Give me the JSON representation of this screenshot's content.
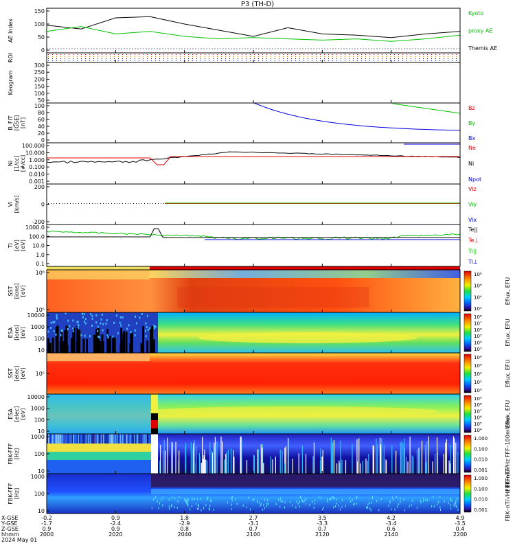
{
  "title": "P3 (TH-D)",
  "panels": [
    {
      "id": "ae",
      "ylabel": "AE Index",
      "yticks": [
        "150",
        "100",
        "50",
        "0"
      ],
      "legend": [
        {
          "text": "Kyoto",
          "color": "#00c000"
        },
        {
          "text": "proxy AE",
          "color": "#00c000"
        },
        {
          "text": "Themis AE",
          "color": "#000000"
        }
      ]
    },
    {
      "id": "roi",
      "ylabel": "ROI",
      "yticks": [],
      "legend": []
    },
    {
      "id": "keogram",
      "ylabel": "Keogram",
      "yticks": [
        "300",
        "250",
        "200",
        "150",
        "100",
        "50"
      ],
      "legend": []
    },
    {
      "id": "bfit",
      "ylabel": "B_FIT\n[GSE]\n[nT]",
      "yticks": [
        "100",
        "80",
        "60",
        "40",
        "20",
        "0"
      ],
      "legend": [
        {
          "text": "Bz",
          "color": "#e00000"
        },
        {
          "text": "By",
          "color": "#00c000"
        },
        {
          "text": "Bx",
          "color": "#0000e0"
        }
      ]
    },
    {
      "id": "ni",
      "ylabel": "Ni\n[1/cc]\n[#/cc]",
      "yticks": [
        "100.000",
        "10.000",
        "1.000",
        "0.100",
        "0.010",
        "0.001"
      ],
      "legend": [
        {
          "text": "Ne",
          "color": "#e00000"
        },
        {
          "text": "Ni",
          "color": "#000000"
        },
        {
          "text": "Npot",
          "color": "#0000e0"
        }
      ]
    },
    {
      "id": "vi",
      "ylabel": "Vi\n[km/s]",
      "yticks": [
        "200",
        "0",
        "-200"
      ],
      "legend": [
        {
          "text": "Viz",
          "color": "#e00000"
        },
        {
          "text": "Viy",
          "color": "#00c000"
        },
        {
          "text": "Vix",
          "color": "#0000e0"
        }
      ]
    },
    {
      "id": "ti",
      "ylabel": "Ti\n[eV]\n[eV]",
      "yticks": [
        "1000.0",
        "100.0",
        "10.0",
        "1.0",
        "0.1"
      ],
      "legend": [
        {
          "text": "Te||",
          "color": "#000000"
        },
        {
          "text": "Te⊥",
          "color": "#e00000"
        },
        {
          "text": "Ti||",
          "color": "#00c000"
        },
        {
          "text": "Ti⊥",
          "color": "#0000e0"
        }
      ]
    },
    {
      "id": "sst_i",
      "ylabel": "SST\n[ions]\n[eV]",
      "yticks": [
        "10⁶",
        "10⁵"
      ],
      "cbar_label": "Eflux, EFU",
      "cbar_ticks": [
        "10⁸",
        "10⁶",
        "10⁴",
        "10²"
      ]
    },
    {
      "id": "esa_i",
      "ylabel": "ESA\n[ions]\n[eV]",
      "yticks": [
        "10000",
        "1000",
        "100",
        "10"
      ],
      "cbar_label": "Eflux, EFU",
      "cbar_ticks": [
        "10⁸",
        "10⁷",
        "10⁶",
        "10⁵",
        "10⁴",
        "10³"
      ]
    },
    {
      "id": "sst_e",
      "ylabel": "SST\n[elec]\n[eV]",
      "yticks": [
        "10⁵"
      ],
      "cbar_label": "Eflux, EFU",
      "cbar_ticks": [
        "10⁸",
        "10⁶",
        "10⁴",
        "10²",
        "10⁰"
      ]
    },
    {
      "id": "esa_e",
      "ylabel": "ESA\n[elec]\n[eV]",
      "yticks": [
        "10000",
        "1000",
        "100",
        "10"
      ],
      "cbar_label": "Eflux, EFU",
      "cbar_ticks": [
        "10⁹",
        "10⁸",
        "10⁷",
        "10⁶",
        "10⁵",
        "10⁴"
      ]
    },
    {
      "id": "fbk_b",
      "ylabel": "FBK-FFF\n[Hz]",
      "yticks": [
        "1000",
        "100",
        "10"
      ],
      "cbar_label": "FBK–nT/√Hz   FFF–100mV/m²",
      "cbar_ticks": [
        "1.000",
        "0.100",
        "0.010",
        "0.001"
      ]
    },
    {
      "id": "fbk_e",
      "ylabel": "FBK-FFF\n[Hz]",
      "yticks": [
        "1000",
        "100",
        "10"
      ],
      "cbar_label": "FBK–nT/√Hz   FFF–nT²",
      "cbar_ticks": [
        "1.000",
        "0.100",
        "0.010",
        "0.001"
      ]
    }
  ],
  "xaxis": {
    "row_labels": [
      "X-GSE",
      "Y-GSE",
      "Z-GSE",
      "hhmm",
      "2024 May 01"
    ],
    "ticks": [
      {
        "x": "-0.2",
        "y": "-1.7",
        "z": "0.9",
        "t": "2000"
      },
      {
        "x": "0.9",
        "y": "-2.4",
        "z": "0.9",
        "t": "2020"
      },
      {
        "x": "1.8",
        "y": "-2.9",
        "z": "0.8",
        "t": "2040"
      },
      {
        "x": "2.7",
        "y": "-3.1",
        "z": "0.7",
        "t": "2100"
      },
      {
        "x": "3.5",
        "y": "-3.3",
        "z": "0.7",
        "t": "2120"
      },
      {
        "x": "4.2",
        "y": "-3.4",
        "z": "0.6",
        "t": "2140"
      },
      {
        "x": "4.9",
        "y": "-3.5",
        "z": "0.4",
        "t": "2200"
      }
    ]
  },
  "chart_data": {
    "type": "line",
    "x": [
      2000,
      2010,
      2020,
      2030,
      2040,
      2050,
      2100,
      2110,
      2120,
      2130,
      2140,
      2150,
      2200
    ],
    "series": [
      {
        "name": "Themis AE",
        "values": [
          95,
          80,
          125,
          130,
          100,
          75,
          50,
          85,
          60,
          55,
          45,
          60,
          70
        ]
      },
      {
        "name": "Kyoto proxy AE",
        "values": [
          70,
          90,
          60,
          70,
          50,
          40,
          45,
          40,
          35,
          40,
          30,
          40,
          55
        ]
      }
    ],
    "ylim": [
      0,
      150
    ],
    "ylabel": "AE Index",
    "xlabel": "hhmm"
  },
  "colors": {
    "red": "#e00000",
    "green": "#00c000",
    "blue": "#0000e0",
    "black": "#000000",
    "axis": "#000000"
  }
}
